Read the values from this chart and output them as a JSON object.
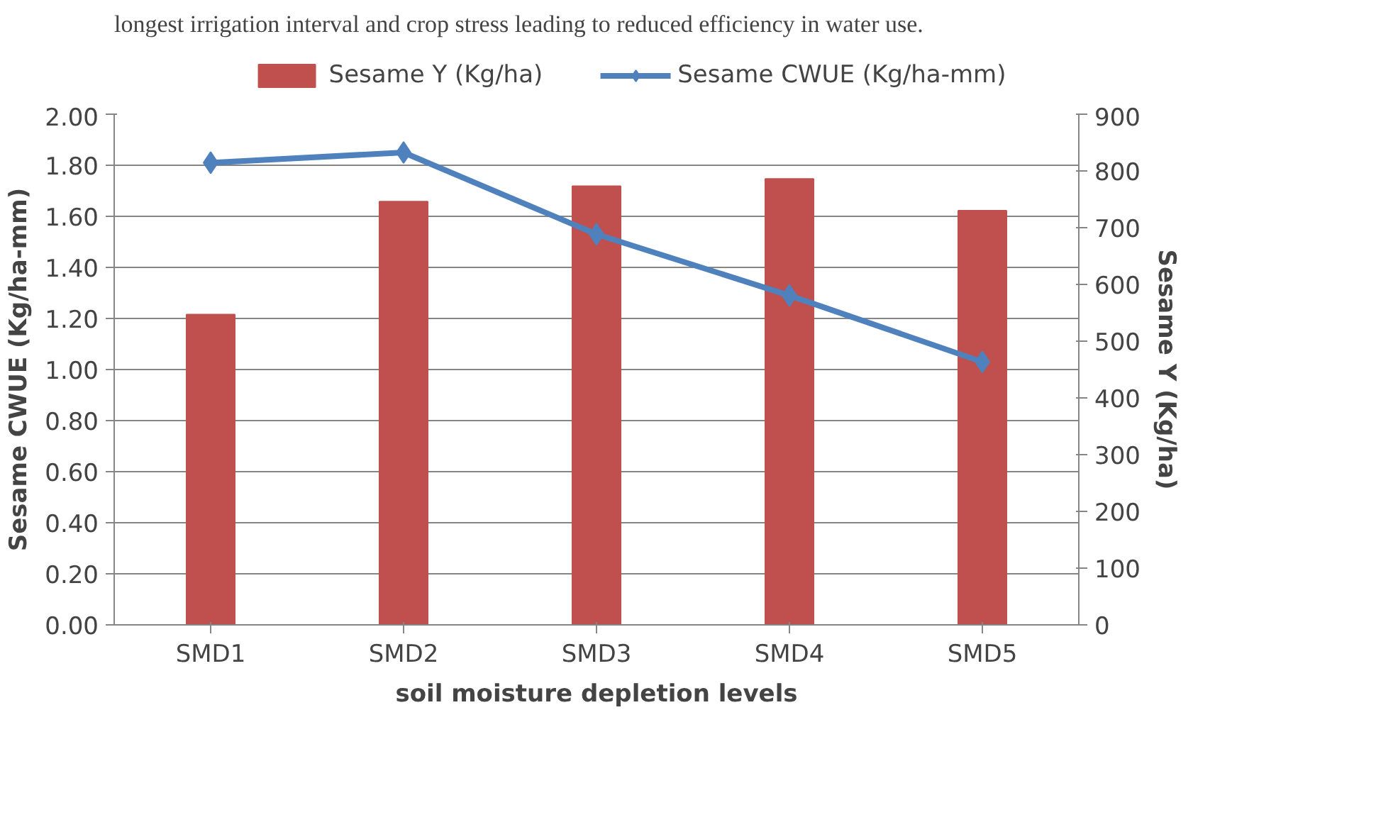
{
  "chart_data": {
    "type": "bar",
    "annotations": [
      "longest irrigation interval and crop stress leading to reduced efficiency in water use."
    ],
    "xlabel": "soil moisture depletion levels",
    "ylabel": "Sesame CWUE (Kg/ha-mm)",
    "y2label": "Sesame Y (Kg/ha)",
    "categories": [
      "SMD1",
      "SMD2",
      "SMD3",
      "SMD4",
      "SMD5"
    ],
    "series": [
      {
        "name": "Sesame Y (Kg/ha)",
        "axis": "y2",
        "color": "#c0504d",
        "values": [
          547,
          746,
          773,
          786,
          730
        ]
      },
      {
        "name": "Sesame CWUE (Kg/ha-mm)",
        "type": "line",
        "color": "#4f81bd",
        "marker": "diamond",
        "values": [
          1.81,
          1.85,
          1.53,
          1.29,
          1.03
        ]
      }
    ],
    "ylim": [
      0,
      2
    ],
    "yticks": [
      {
        "value": 0,
        "label": "0.00"
      },
      {
        "value": 0.2,
        "label": "0.20"
      },
      {
        "value": 0.4,
        "label": "0.40"
      },
      {
        "value": 0.6,
        "label": "0.60"
      },
      {
        "value": 0.8,
        "label": "0.80"
      },
      {
        "value": 1,
        "label": "1.00"
      },
      {
        "value": 1.2,
        "label": "1.20"
      },
      {
        "value": 1.4,
        "label": "1.40"
      },
      {
        "value": 1.6,
        "label": "1.60"
      },
      {
        "value": 1.8,
        "label": "1.80"
      },
      {
        "value": 2,
        "label": "2.00"
      }
    ],
    "y2lim": [
      0,
      900
    ],
    "y2ticks": [
      0,
      100,
      200,
      300,
      400,
      500,
      600,
      700,
      800,
      900
    ],
    "grid": "y",
    "legend": "top"
  }
}
